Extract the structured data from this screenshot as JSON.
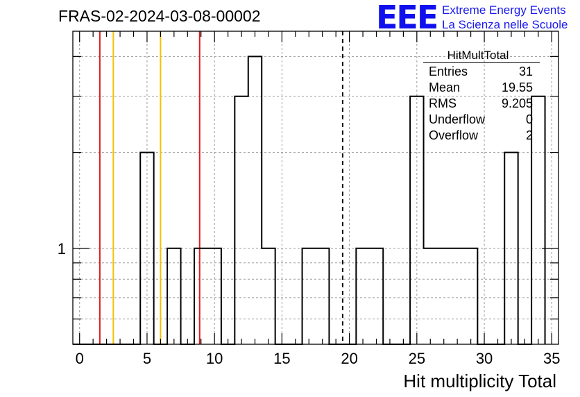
{
  "header": {
    "title": "FRAS-02-2024-03-08-00002",
    "logo_mark": "EEE",
    "logo_line1": "Extreme Energy Events",
    "logo_line2": "La Scienza nelle Scuole"
  },
  "stats_box": {
    "title": "HitMultTotal",
    "rows": [
      {
        "label": "Entries",
        "value": "31"
      },
      {
        "label": "Mean",
        "value": "19.55"
      },
      {
        "label": "RMS",
        "value": "9.205"
      },
      {
        "label": "Underflow",
        "value": "0"
      },
      {
        "label": "Overflow",
        "value": "2"
      }
    ]
  },
  "chart_data": {
    "type": "histogram",
    "title": "FRAS-02-2024-03-08-00002",
    "xlabel": "Hit multiplicity Total",
    "ylabel": "",
    "xlim": [
      -0.5,
      35.5
    ],
    "ylog": true,
    "ylim": [
      0.5,
      4.8
    ],
    "bins": {
      "low_edges_start": -0.5,
      "width": 1
    },
    "counts": [
      0,
      0,
      0,
      0,
      0,
      2,
      0,
      1,
      0,
      1,
      1,
      0,
      3,
      4,
      1,
      0,
      0,
      1,
      1,
      0,
      0,
      1,
      1,
      0,
      0,
      3,
      1,
      1,
      1,
      1,
      0,
      0,
      2,
      0,
      3
    ],
    "xticks": [
      0,
      5,
      10,
      15,
      20,
      25,
      30,
      35
    ],
    "yticks_labeled": [
      {
        "value": 1,
        "label": "1"
      }
    ],
    "grid": true,
    "vertical_lines": [
      {
        "x": 1.5,
        "color": "#e41a1c",
        "style": "solid"
      },
      {
        "x": 2.5,
        "color": "#f2c200",
        "style": "solid"
      },
      {
        "x": 6.0,
        "color": "#f2c200",
        "style": "solid"
      },
      {
        "x": 8.9,
        "color": "#e41a1c",
        "style": "solid"
      },
      {
        "x": 19.5,
        "color": "#000000",
        "style": "dashed"
      }
    ]
  }
}
